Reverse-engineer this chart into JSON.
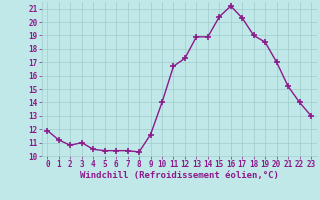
{
  "x": [
    0,
    1,
    2,
    3,
    4,
    5,
    6,
    7,
    8,
    9,
    10,
    11,
    12,
    13,
    14,
    15,
    16,
    17,
    18,
    19,
    20,
    21,
    22,
    23
  ],
  "y": [
    11.9,
    11.2,
    10.8,
    11.0,
    10.5,
    10.4,
    10.4,
    10.4,
    10.3,
    11.6,
    14.0,
    16.7,
    17.3,
    18.9,
    18.9,
    20.4,
    21.2,
    20.3,
    19.0,
    18.5,
    17.0,
    15.2,
    14.0,
    13.0
  ],
  "line_color": "#8b1a8b",
  "marker": "+",
  "marker_size": 4,
  "marker_linewidth": 1.2,
  "background_color": "#c0e8e8",
  "grid_color": "#a0cccc",
  "xlabel": "Windchill (Refroidissement éolien,°C)",
  "xlim": [
    -0.5,
    23.5
  ],
  "ylim": [
    10,
    21.5
  ],
  "yticks": [
    10,
    11,
    12,
    13,
    14,
    15,
    16,
    17,
    18,
    19,
    20,
    21
  ],
  "xticks": [
    0,
    1,
    2,
    3,
    4,
    5,
    6,
    7,
    8,
    9,
    10,
    11,
    12,
    13,
    14,
    15,
    16,
    17,
    18,
    19,
    20,
    21,
    22,
    23
  ],
  "tick_color": "#8b1a8b",
  "tick_fontsize": 5.5,
  "xlabel_fontsize": 6.5,
  "xlabel_color": "#8b1a8b",
  "linewidth": 1.0
}
